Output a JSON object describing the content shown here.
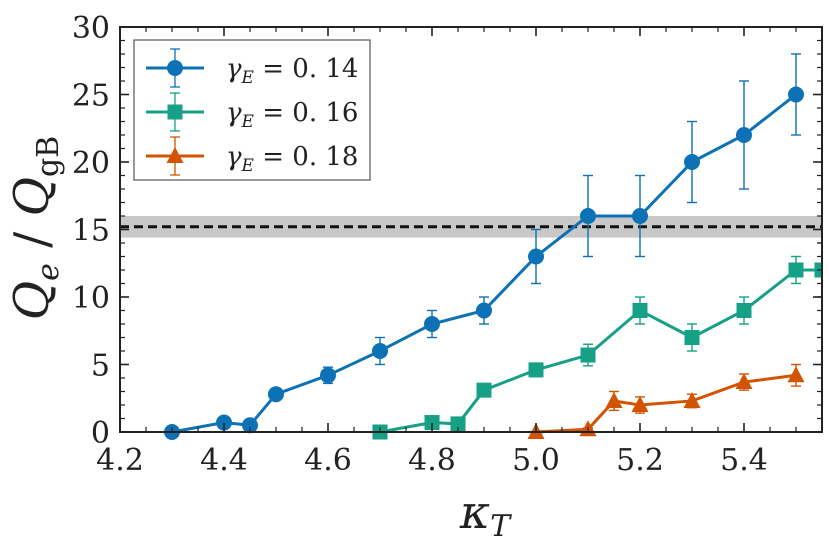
{
  "chart_data": {
    "type": "line",
    "xlabel": "κ_T",
    "ylabel": "Q_e / Q_gB",
    "xlim": [
      4.2,
      5.55
    ],
    "ylim": [
      0,
      30
    ],
    "xticks": [
      "4.2",
      "4.4",
      "4.6",
      "4.8",
      "5.0",
      "5.2",
      "5.4"
    ],
    "yticks": [
      "0",
      "5",
      "10",
      "15",
      "20",
      "25",
      "30"
    ],
    "reference_line": {
      "y": 15.2,
      "band": [
        14.4,
        16.0
      ],
      "style": "dashed"
    },
    "legend_position": "top-left",
    "series": [
      {
        "name": "γ_E = 0.14",
        "legend_label": "γ",
        "legend_sub": "E",
        "legend_value": " = 0. 14",
        "color": "#0d72b5",
        "marker": "circle",
        "x": [
          4.3,
          4.4,
          4.45,
          4.5,
          4.6,
          4.7,
          4.8,
          4.9,
          5.0,
          5.1,
          5.2,
          5.3,
          5.4,
          5.5
        ],
        "y": [
          0,
          0.7,
          0.5,
          2.8,
          4.2,
          6,
          8,
          9,
          13,
          16,
          16,
          20,
          22,
          25
        ],
        "yerr": [
          0,
          0.2,
          0.2,
          0.4,
          0.6,
          1,
          1,
          1,
          2,
          3,
          3,
          3,
          4,
          3
        ]
      },
      {
        "name": "γ_E = 0.16",
        "legend_label": "γ",
        "legend_sub": "E",
        "legend_value": " = 0. 16",
        "color": "#16a085",
        "marker": "square",
        "x": [
          4.7,
          4.8,
          4.85,
          4.9,
          5.0,
          5.1,
          5.2,
          5.3,
          5.4,
          5.5,
          5.55
        ],
        "y": [
          0,
          0.7,
          0.6,
          3.1,
          4.6,
          5.7,
          9,
          7,
          9,
          12,
          12
        ],
        "yerr": [
          0,
          0.2,
          0.2,
          0.3,
          0.5,
          0.8,
          1,
          1,
          1,
          1,
          2
        ]
      },
      {
        "name": "γ_E = 0.18",
        "legend_label": "γ",
        "legend_sub": "E",
        "legend_value": " = 0. 18",
        "color": "#d35400",
        "marker": "triangle",
        "x": [
          5.0,
          5.1,
          5.15,
          5.2,
          5.3,
          5.4,
          5.5
        ],
        "y": [
          0,
          0.2,
          2.3,
          2.0,
          2.3,
          3.7,
          4.2
        ],
        "yerr": [
          0,
          0.1,
          0.7,
          0.6,
          0.5,
          0.6,
          0.8
        ]
      }
    ]
  }
}
